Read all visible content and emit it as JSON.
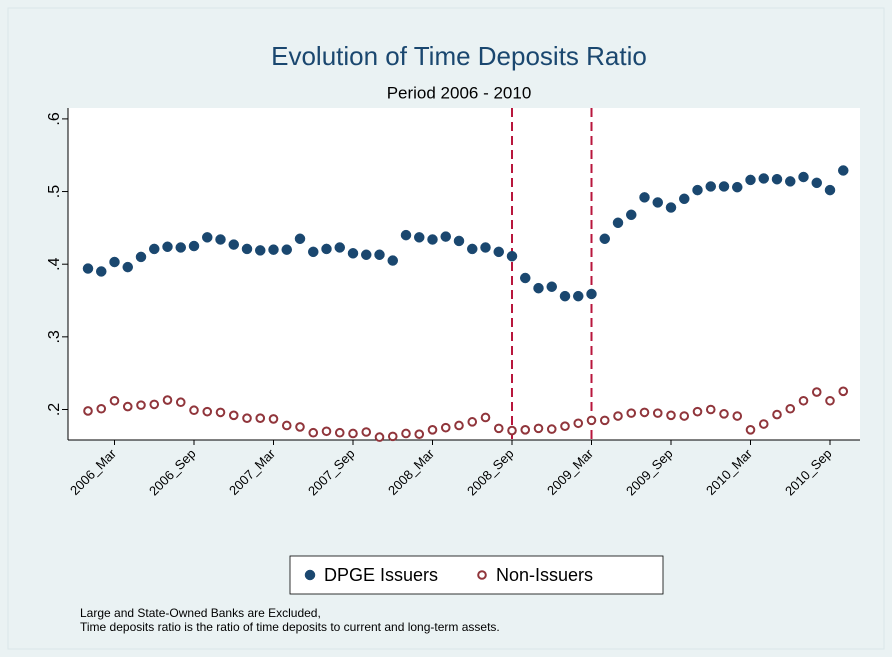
{
  "chart_data": {
    "type": "scatter",
    "title": "Evolution of Time Deposits Ratio",
    "subtitle": "Period 2006 - 2010",
    "categories": [
      null,
      null,
      "2006_Mar",
      null,
      null,
      null,
      null,
      null,
      "2006_Sep",
      null,
      null,
      null,
      null,
      null,
      "2007_Mar",
      null,
      null,
      null,
      null,
      null,
      "2007_Sep",
      null,
      null,
      null,
      null,
      null,
      "2008_Mar",
      null,
      null,
      null,
      null,
      null,
      "2008_Sep",
      null,
      null,
      null,
      null,
      null,
      "2009_Mar",
      null,
      null,
      null,
      null,
      null,
      "2009_Sep",
      null,
      null,
      null,
      null,
      null,
      "2010_Mar",
      null,
      null,
      null,
      null,
      null,
      "2010_Sep",
      null
    ],
    "series": [
      {
        "name": "DPGE Issuers",
        "color": "#1a476f",
        "hollow": false,
        "values": [
          0.394,
          0.39,
          0.403,
          0.396,
          0.41,
          0.421,
          0.424,
          0.423,
          0.425,
          0.437,
          0.434,
          0.427,
          0.421,
          0.419,
          0.42,
          0.42,
          0.435,
          0.417,
          0.421,
          0.423,
          0.415,
          0.413,
          0.413,
          0.405,
          0.44,
          0.437,
          0.434,
          0.438,
          0.432,
          0.421,
          0.423,
          0.417,
          0.411,
          0.381,
          0.367,
          0.369,
          0.356,
          0.356,
          0.359,
          0.435,
          0.457,
          0.468,
          0.492,
          0.485,
          0.478,
          0.49,
          0.502,
          0.507,
          0.507,
          0.506,
          0.516,
          0.518,
          0.517,
          0.514,
          0.52,
          0.512,
          0.502,
          0.529
        ]
      },
      {
        "name": "Non-Issuers",
        "color": "#90353b",
        "hollow": true,
        "values": [
          0.198,
          0.201,
          0.212,
          0.204,
          0.206,
          0.207,
          0.213,
          0.21,
          0.199,
          0.197,
          0.196,
          0.192,
          0.188,
          0.188,
          0.187,
          0.178,
          0.176,
          0.168,
          0.17,
          0.168,
          0.167,
          0.169,
          0.162,
          0.163,
          0.167,
          0.166,
          0.172,
          0.175,
          0.178,
          0.183,
          0.189,
          0.174,
          0.171,
          0.172,
          0.174,
          0.173,
          0.177,
          0.181,
          0.185,
          0.185,
          0.191,
          0.195,
          0.196,
          0.195,
          0.192,
          0.191,
          0.197,
          0.2,
          0.194,
          0.191,
          0.172,
          0.18,
          0.193,
          0.201,
          0.212,
          0.224,
          0.212,
          0.225
        ]
      }
    ],
    "ylim": [
      0.158,
      0.615
    ],
    "yticks": [
      {
        "value": 0.2,
        "label": ".2"
      },
      {
        "value": 0.3,
        "label": ".3"
      },
      {
        "value": 0.4,
        "label": ".4"
      },
      {
        "value": 0.5,
        "label": ".5"
      },
      {
        "value": 0.6,
        "label": ".6"
      }
    ],
    "grid": false,
    "xlines": [
      "2008_Sep",
      "2009_Mar"
    ],
    "xline_color": "#b8163c",
    "legend": "bottom",
    "notes": [
      "Large and State-Owned Banks are Excluded,",
      "Time deposits ratio is the ratio of time deposits to current and long-term assets."
    ]
  }
}
